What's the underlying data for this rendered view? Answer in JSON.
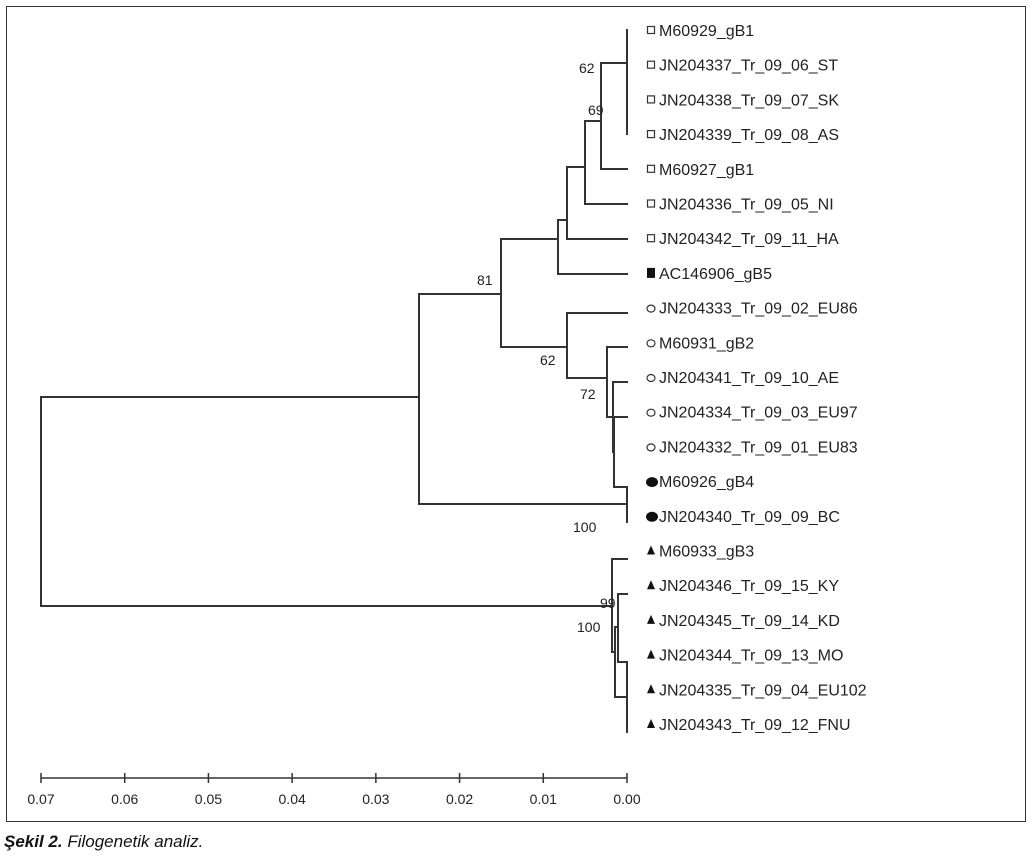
{
  "tree": {
    "leaves": [
      {
        "label": "M60929_gB1",
        "marker": "square-open-icon"
      },
      {
        "label": "JN204337_Tr_09_06_ST",
        "marker": "square-open-icon"
      },
      {
        "label": "JN204338_Tr_09_07_SK",
        "marker": "square-open-icon"
      },
      {
        "label": "JN204339_Tr_09_08_AS",
        "marker": "square-open-icon"
      },
      {
        "label": "M60927_gB1",
        "marker": "square-open-icon"
      },
      {
        "label": "JN204336_Tr_09_05_NI",
        "marker": "square-open-icon"
      },
      {
        "label": "JN204342_Tr_09_11_HA",
        "marker": "square-open-icon"
      },
      {
        "label": "AC146906_gB5",
        "marker": "square-filled-icon"
      },
      {
        "label": "JN204333_Tr_09_02_EU86",
        "marker": "circle-open-icon"
      },
      {
        "label": "M60931_gB2",
        "marker": "circle-open-icon"
      },
      {
        "label": "JN204341_Tr_09_10_AE",
        "marker": "circle-open-icon"
      },
      {
        "label": "JN204334_Tr_09_03_EU97",
        "marker": "circle-open-icon"
      },
      {
        "label": "JN204332_Tr_09_01_EU83",
        "marker": "circle-open-icon"
      },
      {
        "label": "M60926_gB4",
        "marker": "circle-filled-icon"
      },
      {
        "label": "JN204340_Tr_09_09_BC",
        "marker": "circle-filled-icon"
      },
      {
        "label": "M60933_gB3",
        "marker": "triangle-filled-icon"
      },
      {
        "label": "JN204346_Tr_09_15_KY",
        "marker": "triangle-filled-icon"
      },
      {
        "label": "JN204345_Tr_09_14_KD",
        "marker": "triangle-filled-icon"
      },
      {
        "label": "JN204344_Tr_09_13_MO",
        "marker": "triangle-filled-icon"
      },
      {
        "label": "JN204335_Tr_09_04_EU102",
        "marker": "triangle-filled-icon"
      },
      {
        "label": "JN204343_Tr_09_12_FNU",
        "marker": "triangle-filled-icon"
      }
    ],
    "bootstrap": [
      "62",
      "69",
      "81",
      "62",
      "72",
      "100",
      "99",
      "100"
    ],
    "scale": {
      "ticks": [
        "0.07",
        "0.06",
        "0.05",
        "0.04",
        "0.03",
        "0.02",
        "0.01",
        "0.00"
      ],
      "tick_values": [
        0.07,
        0.06,
        0.05,
        0.04,
        0.03,
        0.02,
        0.01,
        0.0
      ],
      "range": [
        0.07,
        0.0
      ]
    },
    "line_color": "#333333"
  },
  "caption": {
    "label": "Şekil 2.",
    "text": " Filogenetik analiz."
  }
}
